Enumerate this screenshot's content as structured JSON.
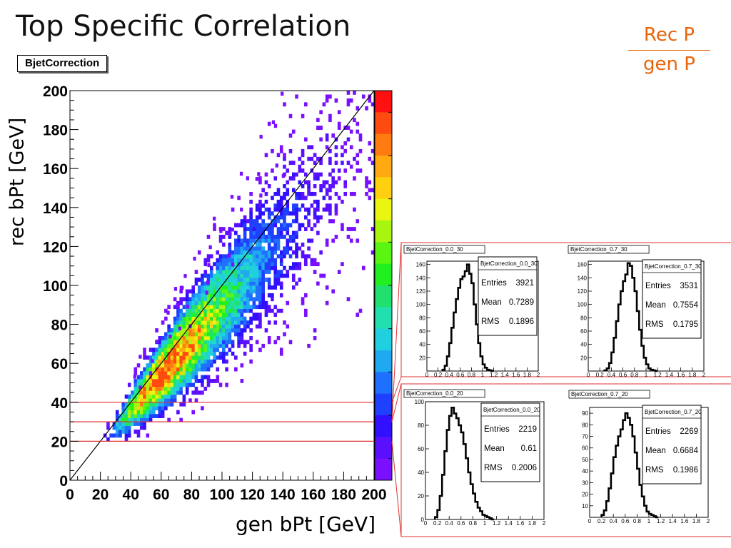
{
  "slide": {
    "title": "Top Specific Correlation",
    "ratio_numerator": "Rec P",
    "ratio_denominator": "gen P"
  },
  "colors": {
    "ratio_text": "#e8640a",
    "cut_lines": "#e03030",
    "hist_line": "#000000",
    "palette": [
      "#ff1010",
      "#ff4a10",
      "#ff7a10",
      "#ffa810",
      "#ffd010",
      "#eaf510",
      "#a8f510",
      "#5af510",
      "#20f020",
      "#20e070",
      "#20e0b0",
      "#20d0e0",
      "#20a8f0",
      "#2070ff",
      "#2040ff",
      "#3010ff",
      "#5a10ff",
      "#7a10ff"
    ]
  },
  "chart_data": [
    {
      "type": "heatmap",
      "title": "BjetCorrection",
      "xlabel": "gen bPt [GeV]",
      "ylabel": "rec bPt [GeV]",
      "xlim": [
        0,
        200
      ],
      "ylim": [
        0,
        200
      ],
      "xticks": [
        "0",
        "20",
        "40",
        "60",
        "80",
        "100",
        "120",
        "140",
        "160",
        "180",
        "200"
      ],
      "yticks": [
        "0",
        "20",
        "40",
        "60",
        "80",
        "100",
        "120",
        "140",
        "160",
        "180",
        "200"
      ],
      "diagonal": [
        [
          0,
          0
        ],
        [
          200,
          200
        ]
      ],
      "cut_lines_y": [
        20,
        30,
        40
      ],
      "description_of_density": {
        "peak_x": 62,
        "peak_y": 56,
        "ratio_mean": 0.9,
        "ratio_sigma": 0.17,
        "min_x": 20,
        "min_y": 20
      },
      "colorbar": true
    },
    {
      "type": "bar",
      "title": "BjetCorrection_0.0_30",
      "xlim": [
        0,
        2
      ],
      "ylim": [
        0,
        165
      ],
      "xticks": [
        "0",
        "0.2",
        "0.4",
        "0.6",
        "0.8",
        "1",
        "1.2",
        "1.4",
        "1.6",
        "1.8",
        "2"
      ],
      "yticks": [
        "20",
        "40",
        "60",
        "80",
        "100",
        "120",
        "140",
        "160"
      ],
      "stats": {
        "name": "BjetCorrection_0.0_30",
        "entries": "3921",
        "mean": "0.7289",
        "rms": "0.1896"
      },
      "x": [
        0.3,
        0.34,
        0.38,
        0.42,
        0.46,
        0.5,
        0.54,
        0.58,
        0.62,
        0.66,
        0.7,
        0.74,
        0.78,
        0.82,
        0.86,
        0.9,
        0.94,
        0.98,
        1.02,
        1.06,
        1.1,
        1.14,
        1.18
      ],
      "values": [
        2,
        8,
        22,
        42,
        65,
        88,
        108,
        125,
        138,
        142,
        150,
        160,
        146,
        132,
        100,
        70,
        42,
        22,
        10,
        5,
        2,
        1,
        0
      ]
    },
    {
      "type": "bar",
      "title": "BjetCorrection_0.7_30",
      "xlim": [
        0,
        2
      ],
      "ylim": [
        0,
        165
      ],
      "xticks": [
        "0",
        "0.2",
        "0.4",
        "0.6",
        "0.8",
        "1",
        "1.2",
        "1.4",
        "1.6",
        "1.8",
        "2"
      ],
      "yticks": [
        "20",
        "40",
        "60",
        "80",
        "100",
        "120",
        "140",
        "160"
      ],
      "stats": {
        "name": "BjetCorrection_0.7_30",
        "entries": "3531",
        "mean": "0.7554",
        "rms": "0.1795"
      },
      "x": [
        0.3,
        0.34,
        0.38,
        0.42,
        0.46,
        0.5,
        0.54,
        0.58,
        0.62,
        0.66,
        0.7,
        0.74,
        0.78,
        0.82,
        0.86,
        0.9,
        0.94,
        0.98,
        1.02,
        1.06,
        1.1,
        1.14,
        1.18
      ],
      "values": [
        1,
        4,
        12,
        28,
        50,
        75,
        100,
        120,
        135,
        145,
        162,
        158,
        140,
        120,
        90,
        62,
        38,
        20,
        10,
        4,
        2,
        1,
        0
      ]
    },
    {
      "type": "bar",
      "title": "BjetCorrection_0.0_20",
      "xlim": [
        0,
        2
      ],
      "ylim": [
        0,
        100
      ],
      "xticks": [
        "0",
        "0.2",
        "0.4",
        "0.6",
        "0.8",
        "1",
        "1.2",
        "1.4",
        "1.6",
        "1.8",
        "2"
      ],
      "yticks": [
        "0",
        "20",
        "40",
        "60",
        "80",
        "100"
      ],
      "stats": {
        "name": "BjetCorrection_0.0_20",
        "entries": "2219",
        "mean": "0.61",
        "rms": "0.2006"
      },
      "x": [
        0.18,
        0.22,
        0.26,
        0.3,
        0.34,
        0.38,
        0.42,
        0.46,
        0.5,
        0.54,
        0.58,
        0.62,
        0.66,
        0.7,
        0.74,
        0.78,
        0.82,
        0.86,
        0.9,
        0.94,
        0.98,
        1.02,
        1.06,
        1.1,
        1.14
      ],
      "values": [
        2,
        8,
        20,
        38,
        58,
        76,
        88,
        95,
        90,
        86,
        80,
        74,
        64,
        52,
        40,
        30,
        22,
        15,
        10,
        7,
        4,
        3,
        2,
        1,
        0
      ]
    },
    {
      "type": "bar",
      "title": "BjetCorrection_0.7_20",
      "xlim": [
        0,
        2
      ],
      "ylim": [
        0,
        95
      ],
      "xticks": [
        "0",
        "0.2",
        "0.4",
        "0.6",
        "0.8",
        "1",
        "1.2",
        "1.4",
        "1.6",
        "1.8",
        "2"
      ],
      "yticks": [
        "10",
        "20",
        "30",
        "40",
        "50",
        "60",
        "70",
        "80",
        "90"
      ],
      "stats": {
        "name": "BjetCorrection_0.7_20",
        "entries": "2269",
        "mean": "0.6684",
        "rms": "0.1986"
      },
      "x": [
        0.22,
        0.26,
        0.3,
        0.34,
        0.38,
        0.42,
        0.46,
        0.5,
        0.54,
        0.58,
        0.62,
        0.66,
        0.7,
        0.74,
        0.78,
        0.82,
        0.86,
        0.9,
        0.94,
        0.98,
        1.02,
        1.06,
        1.1,
        1.14
      ],
      "values": [
        2,
        6,
        14,
        25,
        38,
        52,
        62,
        70,
        76,
        84,
        90,
        86,
        80,
        70,
        56,
        42,
        28,
        18,
        10,
        5,
        3,
        2,
        1,
        0
      ]
    }
  ]
}
